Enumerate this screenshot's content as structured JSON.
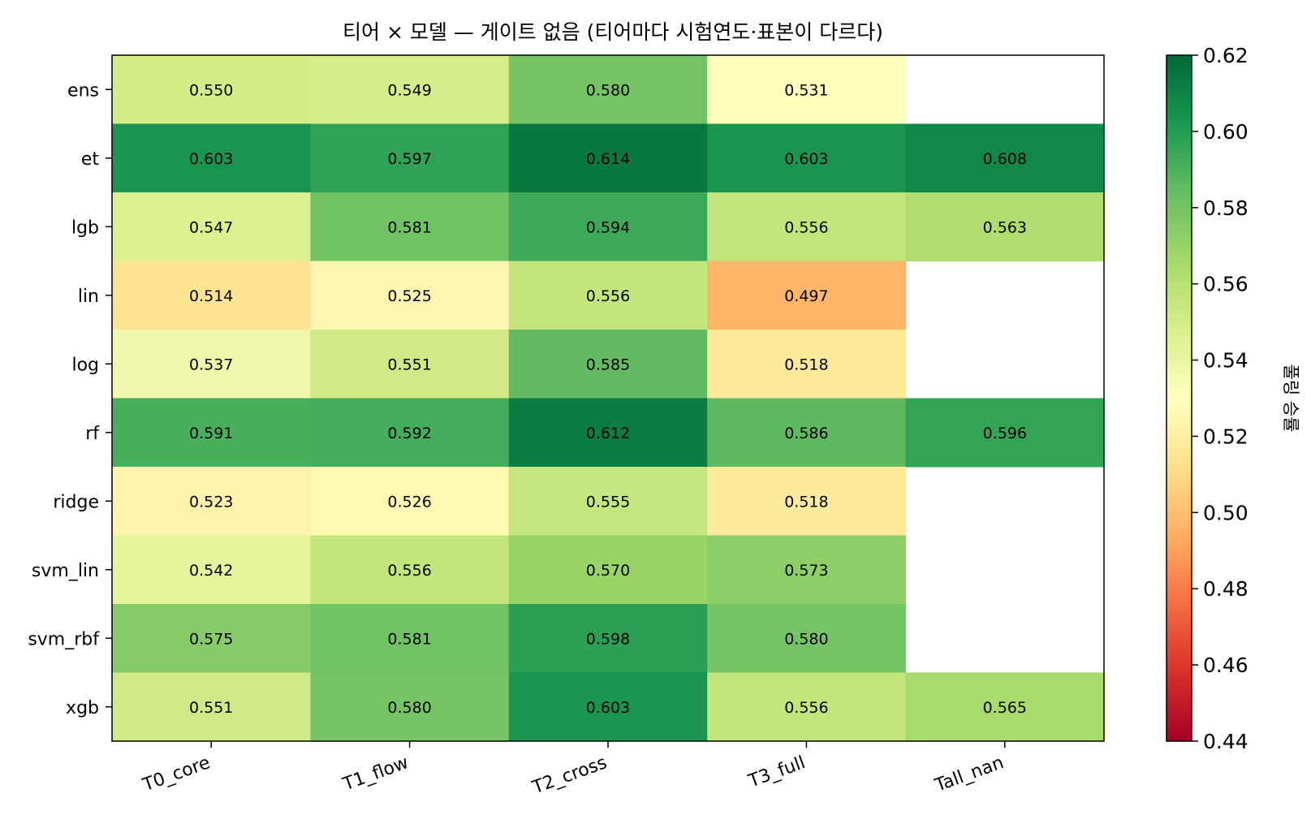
{
  "chart_data": {
    "type": "heatmap",
    "title": "티어 × 모델 — 게이트 없음 (티어마다 시험연도·표본이 다르다)",
    "xlabel": "",
    "ylabel": "",
    "x_categories": [
      "T0_core",
      "T1_flow",
      "T2_cross",
      "T3_full",
      "Tall_nan"
    ],
    "y_categories": [
      "ens",
      "et",
      "lgb",
      "lin",
      "log",
      "rf",
      "ridge",
      "svm_lin",
      "svm_rbf",
      "xgb"
    ],
    "values": [
      [
        0.55,
        0.549,
        0.58,
        0.531,
        null
      ],
      [
        0.603,
        0.597,
        0.614,
        0.603,
        0.608
      ],
      [
        0.547,
        0.581,
        0.594,
        0.556,
        0.563
      ],
      [
        0.514,
        0.525,
        0.556,
        0.497,
        null
      ],
      [
        0.537,
        0.551,
        0.585,
        0.518,
        null
      ],
      [
        0.591,
        0.592,
        0.612,
        0.586,
        0.596
      ],
      [
        0.523,
        0.526,
        0.555,
        0.518,
        null
      ],
      [
        0.542,
        0.556,
        0.57,
        0.573,
        null
      ],
      [
        0.575,
        0.581,
        0.598,
        0.58,
        null
      ],
      [
        0.551,
        0.58,
        0.603,
        0.556,
        0.565
      ]
    ],
    "colormap": "RdYlGn",
    "vmin": 0.44,
    "vmax": 0.62,
    "colorbar": {
      "label": "풀링 승률",
      "ticks": [
        "0.44",
        "0.46",
        "0.48",
        "0.50",
        "0.52",
        "0.54",
        "0.56",
        "0.58",
        "0.60",
        "0.62"
      ]
    },
    "grid": false,
    "legend": "none"
  }
}
